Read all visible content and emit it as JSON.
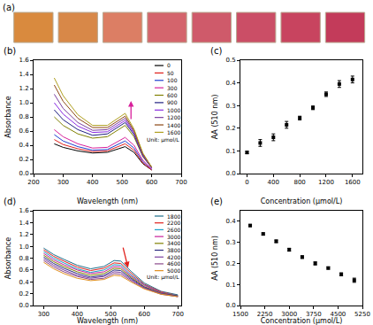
{
  "chart_data": [
    {
      "type": "swatches",
      "title": "(a)",
      "colors": [
        "#d98a3e",
        "#d88848",
        "#dc7e64",
        "#d4646c",
        "#cf5a6a",
        "#cb4e66",
        "#c8445f",
        "#c33b5a"
      ]
    },
    {
      "type": "line",
      "title": "(b)",
      "x_label": "Wavelength (nm)",
      "y_label": "Absorbance",
      "x": [
        270,
        300,
        350,
        400,
        450,
        480,
        510,
        540,
        570,
        600
      ],
      "series": [
        {
          "name": "0",
          "color": "#000000",
          "values": [
            0.42,
            0.37,
            0.32,
            0.29,
            0.3,
            0.34,
            0.38,
            0.3,
            0.14,
            0.05
          ]
        },
        {
          "name": "50",
          "color": "#e0201b",
          "values": [
            0.48,
            0.41,
            0.35,
            0.31,
            0.32,
            0.37,
            0.42,
            0.33,
            0.15,
            0.05
          ]
        },
        {
          "name": "100",
          "color": "#1f3fd0",
          "values": [
            0.55,
            0.46,
            0.38,
            0.33,
            0.34,
            0.4,
            0.46,
            0.36,
            0.17,
            0.06
          ]
        },
        {
          "name": "300",
          "color": "#d8209b",
          "values": [
            0.62,
            0.52,
            0.42,
            0.36,
            0.37,
            0.44,
            0.51,
            0.4,
            0.19,
            0.06
          ]
        },
        {
          "name": "600",
          "color": "#808000",
          "values": [
            0.8,
            0.68,
            0.56,
            0.5,
            0.52,
            0.6,
            0.68,
            0.52,
            0.24,
            0.08
          ]
        },
        {
          "name": "900",
          "color": "#202080",
          "values": [
            0.9,
            0.76,
            0.62,
            0.54,
            0.56,
            0.64,
            0.72,
            0.55,
            0.25,
            0.08
          ]
        },
        {
          "name": "1000",
          "color": "#8a2be2",
          "values": [
            1.0,
            0.84,
            0.67,
            0.58,
            0.59,
            0.67,
            0.75,
            0.57,
            0.26,
            0.08
          ]
        },
        {
          "name": "1200",
          "color": "#7b3fa0",
          "values": [
            1.12,
            0.92,
            0.72,
            0.61,
            0.62,
            0.7,
            0.78,
            0.59,
            0.27,
            0.09
          ]
        },
        {
          "name": "1400",
          "color": "#8b4513",
          "values": [
            1.25,
            1.02,
            0.78,
            0.65,
            0.65,
            0.73,
            0.81,
            0.61,
            0.28,
            0.09
          ]
        },
        {
          "name": "1600",
          "color": "#b0a020",
          "values": [
            1.35,
            1.1,
            0.83,
            0.68,
            0.68,
            0.76,
            0.85,
            0.63,
            0.29,
            0.09
          ]
        }
      ],
      "annotations": [
        "Unit: μmol/L"
      ],
      "legend": "upper right",
      "xlim": [
        200,
        700
      ],
      "xticks": [
        200,
        300,
        400,
        500,
        600,
        700
      ],
      "ylim": [
        0,
        1.6
      ],
      "yticks": [
        {
          "value": 0,
          "label": "0.0"
        },
        0.2,
        0.4,
        0.6,
        0.8,
        {
          "value": 1,
          "label": "1.0"
        },
        1.2,
        1.4,
        1.6
      ]
    },
    {
      "type": "scatter",
      "title": "(c)",
      "x_label": "Concentration (μmol/L)",
      "y_label": "AA (510 nm)",
      "x": [
        0,
        200,
        400,
        600,
        800,
        1000,
        1200,
        1400,
        1600
      ],
      "values": [
        0.093,
        0.135,
        0.16,
        0.215,
        0.245,
        0.29,
        0.35,
        0.395,
        0.415
      ],
      "errors": [
        0.005,
        0.015,
        0.015,
        0.015,
        0.008,
        0.008,
        0.01,
        0.015,
        0.015
      ],
      "color": "#000000",
      "marker": "square",
      "xlim": [
        -100,
        1750
      ],
      "xticks": [
        0,
        400,
        800,
        1200,
        1600
      ],
      "ylim": [
        0,
        0.5
      ],
      "yticks": [
        {
          "value": 0,
          "label": "0.0"
        },
        0.1,
        0.2,
        0.3,
        0.4,
        0.5
      ]
    },
    {
      "type": "line",
      "title": "(d)",
      "x_label": "Wavelength (nm)",
      "y_label": "Absorbance",
      "x": [
        300,
        330,
        360,
        400,
        440,
        480,
        510,
        530,
        560,
        600,
        650,
        700
      ],
      "series": [
        {
          "name": "1800",
          "color": "#1f6f8b",
          "values": [
            0.97,
            0.86,
            0.78,
            0.68,
            0.62,
            0.66,
            0.76,
            0.75,
            0.58,
            0.38,
            0.24,
            0.18
          ]
        },
        {
          "name": "2200",
          "color": "#e0201b",
          "values": [
            0.94,
            0.83,
            0.75,
            0.65,
            0.59,
            0.63,
            0.72,
            0.71,
            0.55,
            0.36,
            0.23,
            0.17
          ]
        },
        {
          "name": "2600",
          "color": "#1aa0c8",
          "values": [
            0.91,
            0.8,
            0.72,
            0.62,
            0.56,
            0.6,
            0.69,
            0.68,
            0.52,
            0.35,
            0.22,
            0.17
          ]
        },
        {
          "name": "3000",
          "color": "#c8209b",
          "values": [
            0.88,
            0.77,
            0.69,
            0.6,
            0.54,
            0.57,
            0.66,
            0.65,
            0.5,
            0.34,
            0.22,
            0.16
          ]
        },
        {
          "name": "3400",
          "color": "#808000",
          "values": [
            0.85,
            0.74,
            0.66,
            0.57,
            0.51,
            0.54,
            0.63,
            0.62,
            0.48,
            0.32,
            0.21,
            0.16
          ]
        },
        {
          "name": "3800",
          "color": "#2b2b80",
          "values": [
            0.82,
            0.71,
            0.63,
            0.54,
            0.48,
            0.51,
            0.6,
            0.59,
            0.46,
            0.31,
            0.2,
            0.16
          ]
        },
        {
          "name": "4200",
          "color": "#7b3fa0",
          "values": [
            0.79,
            0.68,
            0.6,
            0.51,
            0.46,
            0.49,
            0.57,
            0.56,
            0.44,
            0.3,
            0.2,
            0.15
          ]
        },
        {
          "name": "4600",
          "color": "#8b4a8b",
          "values": [
            0.76,
            0.65,
            0.57,
            0.49,
            0.44,
            0.46,
            0.54,
            0.53,
            0.42,
            0.29,
            0.19,
            0.15
          ]
        },
        {
          "name": "5000",
          "color": "#e09020",
          "values": [
            0.73,
            0.62,
            0.54,
            0.46,
            0.42,
            0.44,
            0.51,
            0.5,
            0.4,
            0.28,
            0.19,
            0.15
          ]
        }
      ],
      "annotations": [
        "Unit: μmol/L"
      ],
      "legend": "upper right",
      "xlim": [
        270,
        710
      ],
      "xticks": [
        300,
        400,
        500,
        600,
        700
      ],
      "ylim": [
        0,
        1.6
      ],
      "yticks": [
        {
          "value": 0,
          "label": "0.0"
        },
        0.2,
        0.4,
        0.6,
        0.8,
        {
          "value": 1,
          "label": "1.0"
        },
        1.2,
        1.4,
        1.6
      ]
    },
    {
      "type": "scatter",
      "title": "(e)",
      "x_label": "Concentration (μmol/L)",
      "y_label": "AA (510 nm)",
      "x": [
        1800,
        2200,
        2600,
        3000,
        3400,
        3800,
        4200,
        4600,
        5000
      ],
      "values": [
        0.38,
        0.34,
        0.305,
        0.265,
        0.23,
        0.2,
        0.178,
        0.148,
        0.12
      ],
      "errors": [
        0.005,
        0.005,
        0.006,
        0.007,
        0.006,
        0.007,
        0.005,
        0.007,
        0.01
      ],
      "color": "#000000",
      "marker": "square",
      "xlim": [
        1500,
        5250
      ],
      "xticks": [
        1500,
        2250,
        3000,
        3750,
        4500,
        5250
      ],
      "ylim": [
        0,
        0.45
      ],
      "yticks": [
        {
          "value": 0,
          "label": "0.0"
        },
        0.1,
        0.2,
        0.3,
        0.4
      ]
    }
  ]
}
